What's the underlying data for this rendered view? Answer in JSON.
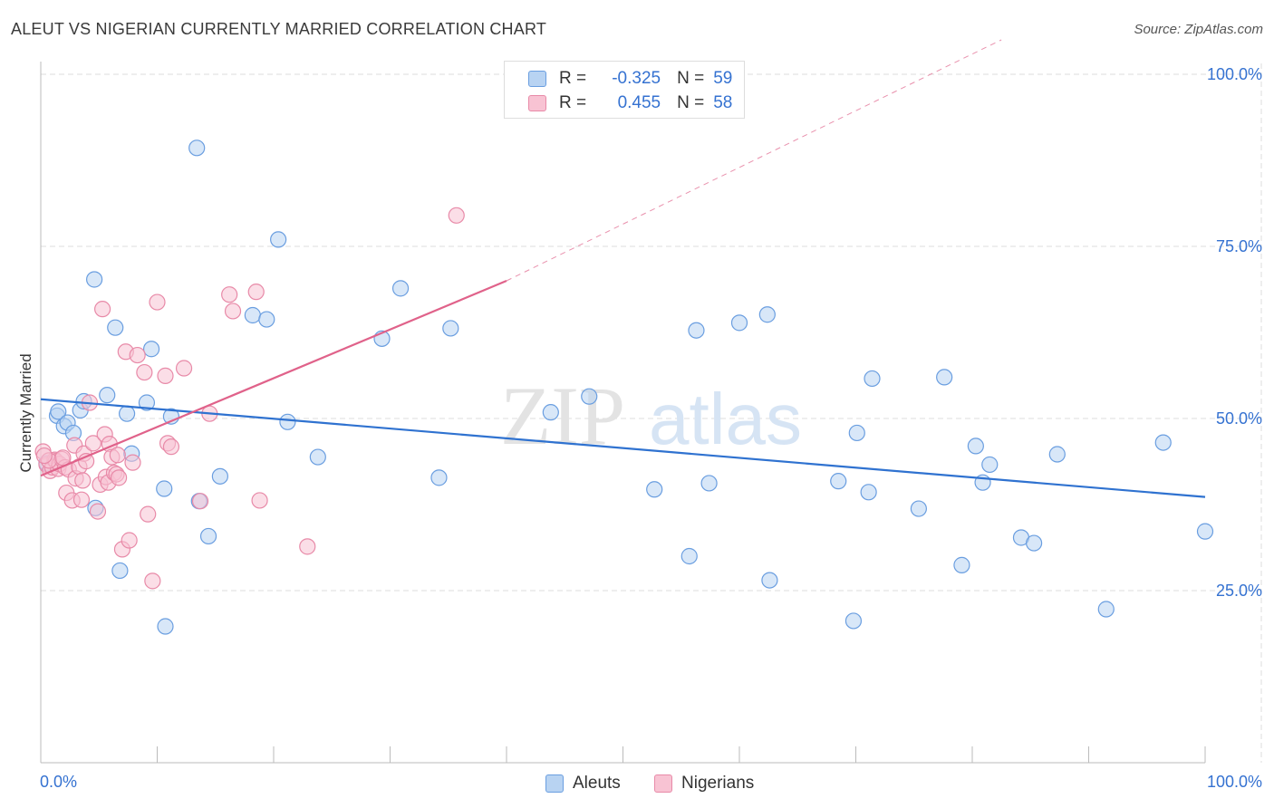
{
  "header": {
    "title": "ALEUT VS NIGERIAN CURRENTLY MARRIED CORRELATION CHART",
    "source": "Source: ZipAtlas.com"
  },
  "watermark": {
    "zip": "ZIP",
    "atlas": "atlas"
  },
  "legend": {
    "aleuts": {
      "r_label": "R =",
      "r_value": "-0.325",
      "n_label": "N =",
      "n_value": "59"
    },
    "nigerians": {
      "r_label": "R =",
      "r_value": "0.455",
      "n_label": "N =",
      "n_value": "58"
    }
  },
  "bottom_legend": {
    "aleuts": "Aleuts",
    "nigerians": "Nigerians"
  },
  "colors": {
    "aleuts_fill": "#b8d3f2",
    "aleuts_stroke": "#6a9ee0",
    "aleuts_line": "#2f72d0",
    "nigerians_fill": "#f8c3d3",
    "nigerians_stroke": "#e88aa8",
    "nigerians_line": "#e0628a",
    "axis_text": "#3572d1",
    "grid": "#dcdcdc"
  },
  "chart_data": {
    "type": "scatter",
    "title": "ALEUT VS NIGERIAN CURRENTLY MARRIED CORRELATION CHART",
    "xlabel": "",
    "ylabel": "Currently Married",
    "xlim": [
      0,
      100
    ],
    "ylim": [
      0,
      105
    ],
    "x_tick_labels": [
      "0.0%",
      "100.0%"
    ],
    "y_ticks": [
      25,
      50,
      75,
      100
    ],
    "y_tick_labels": [
      "25.0%",
      "50.0%",
      "75.0%",
      "100.0%"
    ],
    "series": [
      {
        "name": "Aleuts",
        "r": -0.325,
        "n": 59,
        "trend": {
          "x": [
            0,
            100
          ],
          "y": [
            52.8,
            38.6
          ]
        },
        "points": [
          {
            "x": 1.4,
            "y": 50.4
          },
          {
            "x": 1.5,
            "y": 51.0
          },
          {
            "x": 2.0,
            "y": 48.9
          },
          {
            "x": 2.3,
            "y": 49.4
          },
          {
            "x": 2.8,
            "y": 47.9
          },
          {
            "x": 3.4,
            "y": 51.2
          },
          {
            "x": 3.7,
            "y": 52.5
          },
          {
            "x": 4.6,
            "y": 70.2
          },
          {
            "x": 4.7,
            "y": 37.0
          },
          {
            "x": 5.7,
            "y": 53.4
          },
          {
            "x": 6.4,
            "y": 63.2
          },
          {
            "x": 6.8,
            "y": 27.9
          },
          {
            "x": 7.4,
            "y": 50.7
          },
          {
            "x": 7.8,
            "y": 44.9
          },
          {
            "x": 9.1,
            "y": 52.3
          },
          {
            "x": 9.5,
            "y": 60.1
          },
          {
            "x": 10.6,
            "y": 39.8
          },
          {
            "x": 10.7,
            "y": 19.8
          },
          {
            "x": 11.2,
            "y": 50.3
          },
          {
            "x": 13.4,
            "y": 89.3
          },
          {
            "x": 13.6,
            "y": 38.0
          },
          {
            "x": 14.4,
            "y": 32.9
          },
          {
            "x": 15.4,
            "y": 41.6
          },
          {
            "x": 18.2,
            "y": 65.0
          },
          {
            "x": 19.4,
            "y": 64.4
          },
          {
            "x": 20.4,
            "y": 76.0
          },
          {
            "x": 21.2,
            "y": 49.5
          },
          {
            "x": 23.8,
            "y": 44.4
          },
          {
            "x": 29.3,
            "y": 61.6
          },
          {
            "x": 30.9,
            "y": 68.9
          },
          {
            "x": 34.2,
            "y": 41.4
          },
          {
            "x": 35.2,
            "y": 63.1
          },
          {
            "x": 43.8,
            "y": 50.9
          },
          {
            "x": 47.1,
            "y": 53.2
          },
          {
            "x": 52.7,
            "y": 39.7
          },
          {
            "x": 55.7,
            "y": 30.0
          },
          {
            "x": 56.3,
            "y": 62.8
          },
          {
            "x": 57.4,
            "y": 40.6
          },
          {
            "x": 60.0,
            "y": 63.9
          },
          {
            "x": 62.4,
            "y": 65.1
          },
          {
            "x": 62.6,
            "y": 26.5
          },
          {
            "x": 68.5,
            "y": 40.9
          },
          {
            "x": 69.8,
            "y": 20.6
          },
          {
            "x": 70.1,
            "y": 47.9
          },
          {
            "x": 71.1,
            "y": 39.3
          },
          {
            "x": 71.4,
            "y": 55.8
          },
          {
            "x": 75.4,
            "y": 36.9
          },
          {
            "x": 77.6,
            "y": 56.0
          },
          {
            "x": 79.1,
            "y": 28.7
          },
          {
            "x": 80.3,
            "y": 46.0
          },
          {
            "x": 80.9,
            "y": 40.7
          },
          {
            "x": 81.5,
            "y": 43.3
          },
          {
            "x": 84.2,
            "y": 32.7
          },
          {
            "x": 85.3,
            "y": 31.9
          },
          {
            "x": 87.3,
            "y": 44.8
          },
          {
            "x": 91.5,
            "y": 22.3
          },
          {
            "x": 96.4,
            "y": 46.5
          },
          {
            "x": 100.0,
            "y": 33.6
          },
          {
            "x": 0.5,
            "y": 43.5
          }
        ]
      },
      {
        "name": "Nigerians",
        "r": 0.455,
        "n": 58,
        "trend": {
          "x": [
            0,
            40
          ],
          "y": [
            41.7,
            70.0
          ]
        },
        "trend_extension": {
          "x": [
            40,
            82.5
          ],
          "y": [
            70.0,
            105.0
          ]
        },
        "points": [
          {
            "x": 0.2,
            "y": 45.2
          },
          {
            "x": 0.5,
            "y": 43.3
          },
          {
            "x": 0.8,
            "y": 42.4
          },
          {
            "x": 1.0,
            "y": 42.9
          },
          {
            "x": 1.2,
            "y": 44.0
          },
          {
            "x": 1.3,
            "y": 43.8
          },
          {
            "x": 1.5,
            "y": 42.7
          },
          {
            "x": 1.6,
            "y": 43.4
          },
          {
            "x": 1.8,
            "y": 44.1
          },
          {
            "x": 2.1,
            "y": 42.9
          },
          {
            "x": 2.2,
            "y": 39.2
          },
          {
            "x": 2.4,
            "y": 42.6
          },
          {
            "x": 2.7,
            "y": 38.1
          },
          {
            "x": 2.9,
            "y": 46.1
          },
          {
            "x": 3.0,
            "y": 41.3
          },
          {
            "x": 3.3,
            "y": 43.0
          },
          {
            "x": 3.5,
            "y": 38.2
          },
          {
            "x": 3.7,
            "y": 44.9
          },
          {
            "x": 3.9,
            "y": 43.8
          },
          {
            "x": 4.2,
            "y": 52.3
          },
          {
            "x": 4.5,
            "y": 46.4
          },
          {
            "x": 4.9,
            "y": 36.5
          },
          {
            "x": 5.1,
            "y": 40.4
          },
          {
            "x": 5.3,
            "y": 65.9
          },
          {
            "x": 5.5,
            "y": 47.7
          },
          {
            "x": 5.6,
            "y": 41.5
          },
          {
            "x": 5.8,
            "y": 40.7
          },
          {
            "x": 5.9,
            "y": 46.3
          },
          {
            "x": 6.1,
            "y": 44.4
          },
          {
            "x": 6.3,
            "y": 42.1
          },
          {
            "x": 6.5,
            "y": 41.9
          },
          {
            "x": 6.6,
            "y": 44.7
          },
          {
            "x": 6.7,
            "y": 41.4
          },
          {
            "x": 7.0,
            "y": 31.0
          },
          {
            "x": 7.3,
            "y": 59.7
          },
          {
            "x": 7.6,
            "y": 32.3
          },
          {
            "x": 7.9,
            "y": 43.6
          },
          {
            "x": 8.3,
            "y": 59.2
          },
          {
            "x": 8.9,
            "y": 56.7
          },
          {
            "x": 9.2,
            "y": 36.1
          },
          {
            "x": 9.6,
            "y": 26.4
          },
          {
            "x": 10.0,
            "y": 66.9
          },
          {
            "x": 10.7,
            "y": 56.2
          },
          {
            "x": 10.9,
            "y": 46.4
          },
          {
            "x": 11.2,
            "y": 45.9
          },
          {
            "x": 12.3,
            "y": 57.3
          },
          {
            "x": 13.7,
            "y": 38.0
          },
          {
            "x": 14.5,
            "y": 50.7
          },
          {
            "x": 16.2,
            "y": 68.0
          },
          {
            "x": 16.5,
            "y": 65.6
          },
          {
            "x": 18.5,
            "y": 68.4
          },
          {
            "x": 18.8,
            "y": 38.1
          },
          {
            "x": 22.9,
            "y": 31.4
          },
          {
            "x": 35.7,
            "y": 79.5
          },
          {
            "x": 0.7,
            "y": 43.9
          },
          {
            "x": 1.9,
            "y": 44.3
          },
          {
            "x": 3.6,
            "y": 41.0
          },
          {
            "x": 0.3,
            "y": 44.6
          }
        ]
      }
    ]
  }
}
